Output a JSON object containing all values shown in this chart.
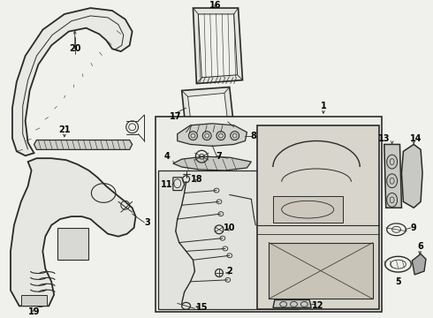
{
  "bg": "#f0f0ec",
  "lc": "#2a2a2a",
  "fig_w": 4.9,
  "fig_h": 3.6,
  "dpi": 100
}
